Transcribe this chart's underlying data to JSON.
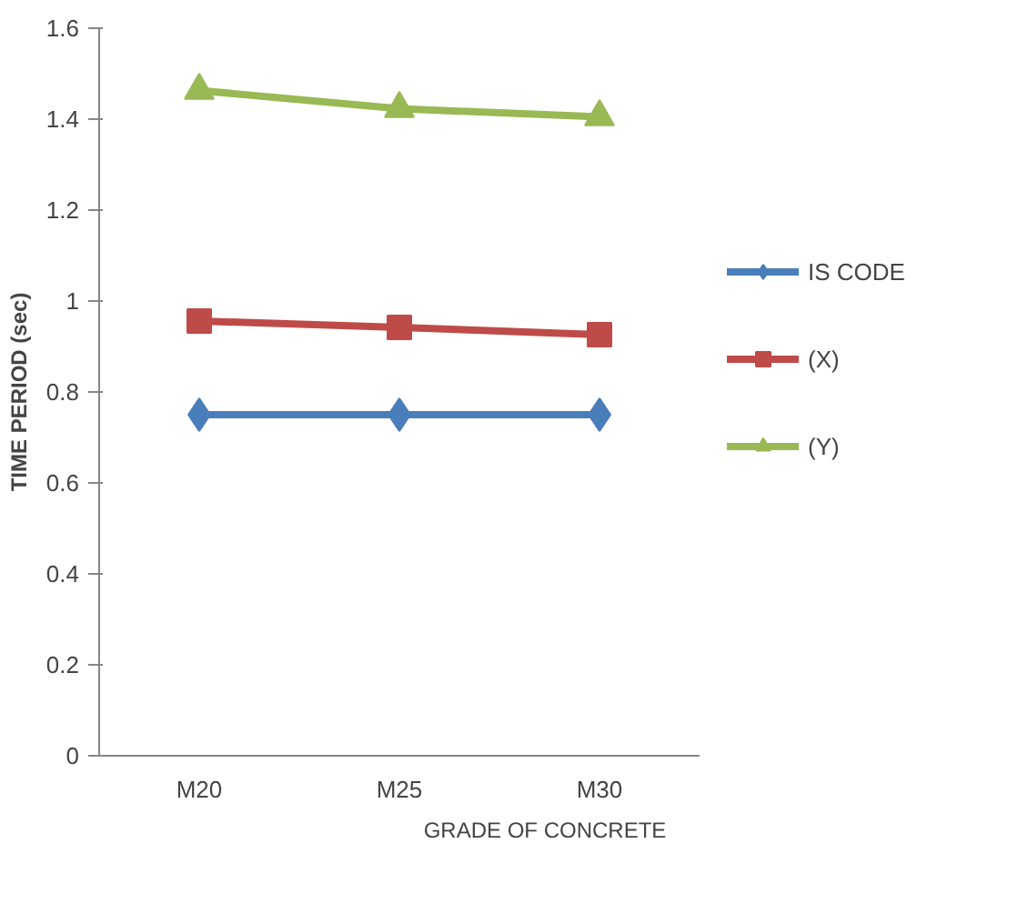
{
  "chart_data": {
    "type": "line",
    "xlabel": "GRADE OF CONCRETE",
    "ylabel": "TIME PERIOD (sec)",
    "categories": [
      "M20",
      "M25",
      "M30"
    ],
    "series": [
      {
        "name": "IS CODE",
        "color": "#4a7ebb",
        "marker": "diamond",
        "values": [
          0.75,
          0.75,
          0.75
        ]
      },
      {
        "name": "(X)",
        "color": "#be4b48",
        "marker": "square",
        "values": [
          0.956,
          0.942,
          0.926
        ]
      },
      {
        "name": "(Y)",
        "color": "#98b954",
        "marker": "triangle",
        "values": [
          1.463,
          1.423,
          1.405
        ]
      }
    ],
    "ylim": [
      0,
      1.6
    ],
    "yticks": [
      0,
      0.2,
      0.4,
      0.6,
      0.8,
      1,
      1.2,
      1.4,
      1.6
    ],
    "grid": false,
    "legend": "right"
  }
}
